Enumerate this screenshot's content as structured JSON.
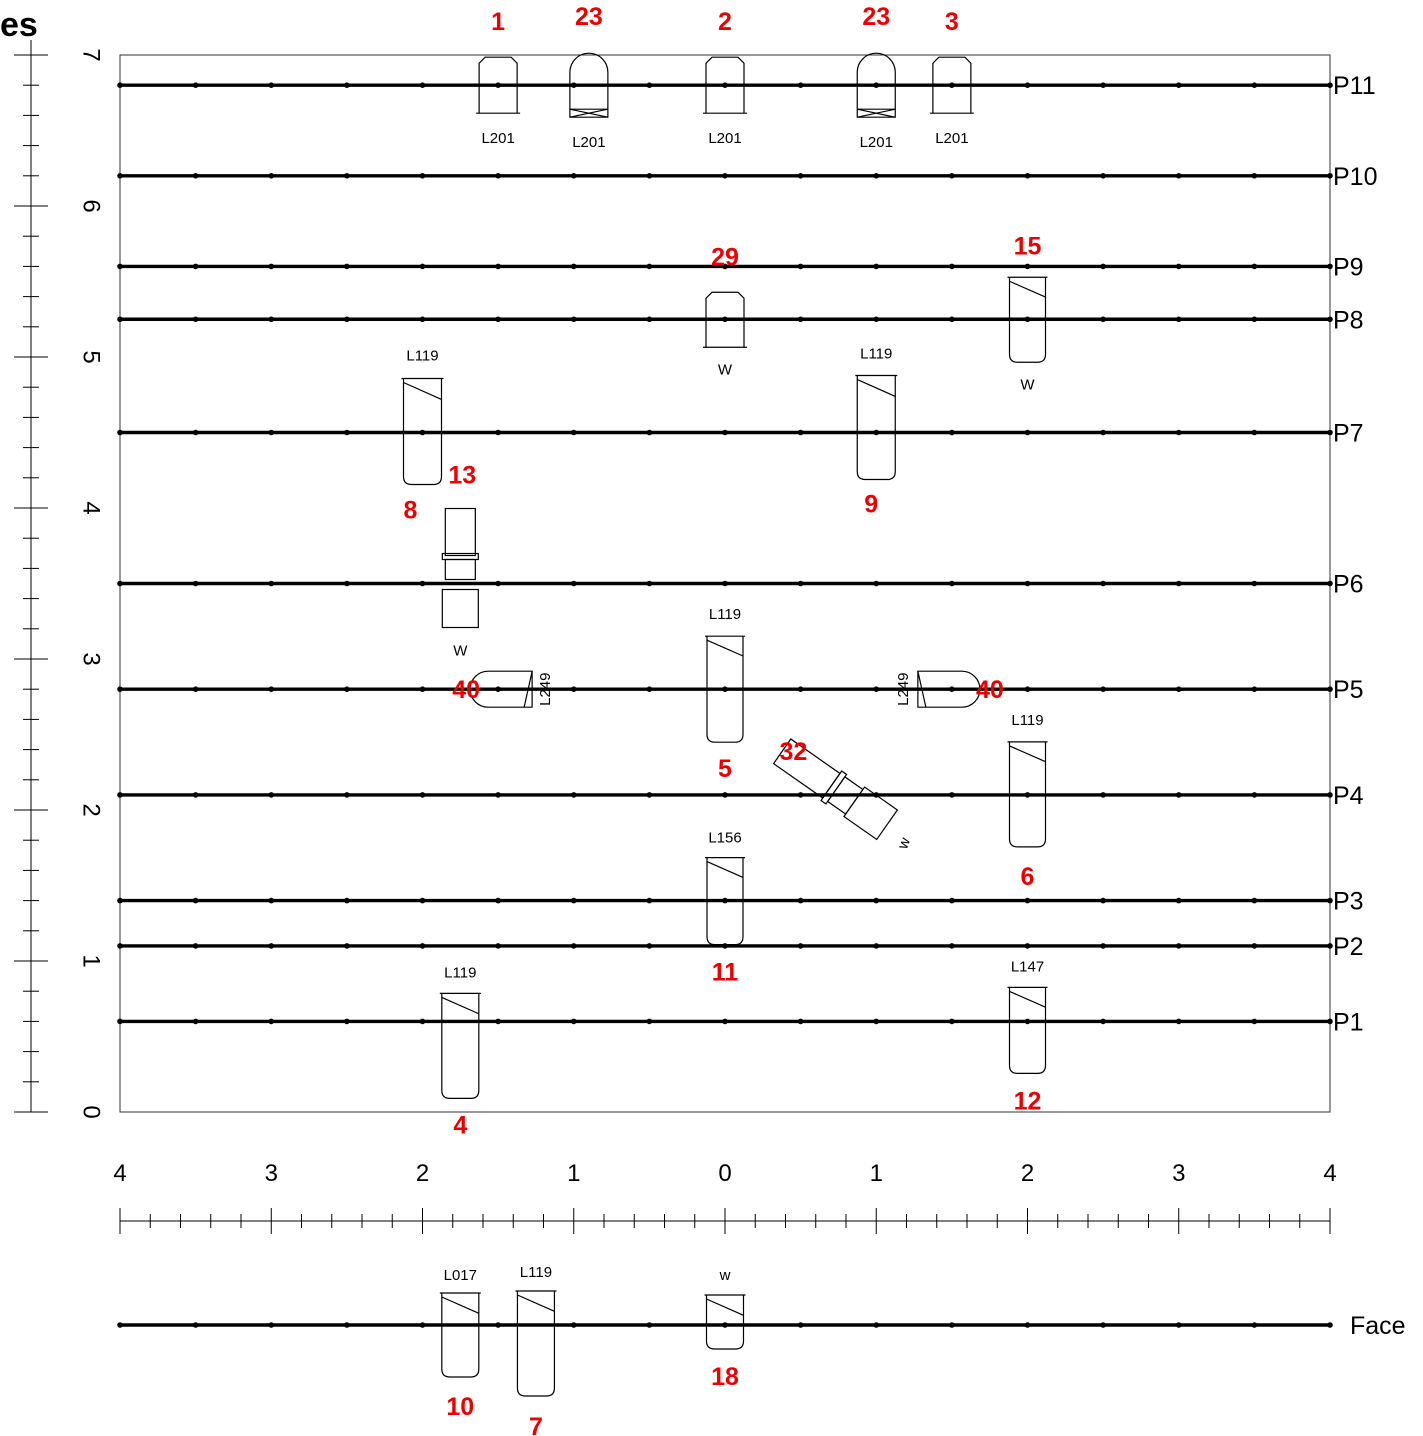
{
  "title_fragment": "es",
  "left_axis": {
    "labels": [
      "0",
      "1",
      "2",
      "3",
      "4",
      "5",
      "6",
      "7"
    ]
  },
  "bottom_axis": {
    "labels": [
      "4",
      "3",
      "2",
      "1",
      "0",
      "1",
      "2",
      "3",
      "4"
    ]
  },
  "planes": [
    {
      "label": "P1",
      "y": 0.6
    },
    {
      "label": "P2",
      "y": 1.1
    },
    {
      "label": "P3",
      "y": 1.4
    },
    {
      "label": "P4",
      "y": 2.1
    },
    {
      "label": "P5",
      "y": 2.8
    },
    {
      "label": "P6",
      "y": 3.5
    },
    {
      "label": "P7",
      "y": 4.5
    },
    {
      "label": "P8",
      "y": 5.25
    },
    {
      "label": "P9",
      "y": 5.6
    },
    {
      "label": "P10",
      "y": 6.2
    },
    {
      "label": "P11",
      "y": 6.8
    }
  ],
  "face": {
    "label": "Face"
  },
  "finds": [
    {
      "id": "1",
      "code": "L201",
      "kind": "lamp",
      "plane": "P11",
      "x": -1.5
    },
    {
      "id": "23",
      "code": "L201",
      "kind": "dome",
      "plane": "P11",
      "x": -0.9
    },
    {
      "id": "2",
      "code": "L201",
      "kind": "lamp",
      "plane": "P11",
      "x": 0.0
    },
    {
      "id": "23",
      "code": "L201",
      "kind": "dome",
      "plane": "P11",
      "x": 1.0
    },
    {
      "id": "3",
      "code": "L201",
      "kind": "lamp",
      "plane": "P11",
      "x": 1.5
    },
    {
      "id": "29",
      "code": "W",
      "kind": "lamp",
      "plane": "P8",
      "x": 0.0
    },
    {
      "id": "15",
      "code": "W",
      "kind": "vessel",
      "plane": "P8",
      "x": 2.0
    },
    {
      "id": "8",
      "code": "L119",
      "kind": "vessel",
      "plane": "P7",
      "x": -2.0
    },
    {
      "id": "9",
      "code": "L119",
      "kind": "vessel",
      "plane": "P7",
      "x": 1.0
    },
    {
      "id": "13",
      "code": "W",
      "kind": "pipe",
      "plane": "P6",
      "x": -1.75
    },
    {
      "id": "5",
      "code": "L119",
      "kind": "vessel",
      "plane": "P5",
      "x": 0.0
    },
    {
      "id": "40",
      "code": "L249",
      "kind": "side",
      "plane": "P5",
      "x": -1.5
    },
    {
      "id": "40",
      "code": "L249",
      "kind": "side",
      "plane": "P5",
      "x": 1.5
    },
    {
      "id": "6",
      "code": "L119",
      "kind": "vessel",
      "plane": "P4",
      "x": 2.0
    },
    {
      "id": "32",
      "code": "w",
      "kind": "pipe",
      "plane": "P4",
      "x": 0.75
    },
    {
      "id": "11",
      "code": "L156",
      "kind": "vessel",
      "plane": "P3",
      "x": 0.0
    },
    {
      "id": "4",
      "code": "L119",
      "kind": "vessel",
      "plane": "P1",
      "x": -1.75
    },
    {
      "id": "12",
      "code": "L147",
      "kind": "vessel",
      "plane": "P1",
      "x": 2.0
    },
    {
      "id": "10",
      "code": "L017",
      "kind": "vessel",
      "plane": "Face",
      "x": -1.75
    },
    {
      "id": "7",
      "code": "L119",
      "kind": "vessel",
      "plane": "Face",
      "x": -1.25
    },
    {
      "id": "18",
      "code": "w",
      "kind": "vessel",
      "plane": "Face",
      "x": 0.0
    }
  ]
}
